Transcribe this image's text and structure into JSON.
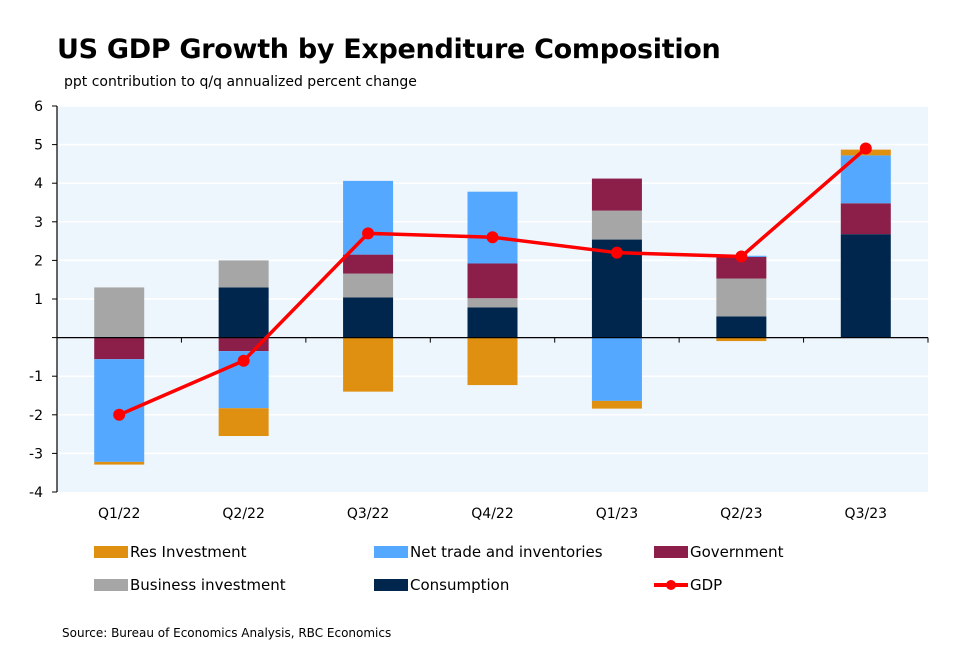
{
  "chart_data": {
    "type": "bar",
    "stacked": true,
    "title": "US GDP Growth by Expenditure Composition",
    "subtitle": "ppt contribution to q/q annualized percent change",
    "xlabel": "",
    "ylabel": "",
    "ylim": [
      -4,
      6
    ],
    "yticks": [
      6,
      5,
      4,
      3,
      2,
      1,
      0,
      -1,
      -2,
      -3,
      -4
    ],
    "ytick_labels": [
      "6",
      "5",
      "4",
      "3",
      "2",
      "1",
      "",
      "-1",
      "-2",
      "-3",
      "-4"
    ],
    "grid": true,
    "legend_position": "bottom",
    "categories": [
      "Q1/22",
      "Q2/22",
      "Q3/22",
      "Q4/22",
      "Q1/23",
      "Q2/23",
      "Q3/23"
    ],
    "series": [
      {
        "name": "Consumption",
        "kind": "bar",
        "color": "#00264D",
        "values": [
          0.02,
          1.3,
          1.04,
          0.78,
          2.54,
          0.55,
          2.68
        ]
      },
      {
        "name": "Business investment",
        "kind": "bar",
        "color": "#A6A6A6",
        "values": [
          1.28,
          0.7,
          0.62,
          0.24,
          0.75,
          0.98,
          0.0
        ]
      },
      {
        "name": "Government",
        "kind": "bar",
        "color": "#8B1F4A",
        "values": [
          -0.56,
          -0.35,
          0.49,
          0.9,
          0.83,
          0.56,
          0.8
        ]
      },
      {
        "name": "Net trade and inventories",
        "kind": "bar",
        "color": "#55A8FF",
        "values": [
          -2.66,
          -1.48,
          1.91,
          1.86,
          -1.64,
          0.03,
          1.24
        ]
      },
      {
        "name": "Res Investment",
        "kind": "bar",
        "color": "#E09010",
        "values": [
          -0.07,
          -0.72,
          -1.4,
          -1.23,
          -0.2,
          -0.09,
          0.15
        ]
      },
      {
        "name": "GDP",
        "kind": "line",
        "color": "#FF0000",
        "values": [
          -2.0,
          -0.6,
          2.7,
          2.6,
          2.2,
          2.1,
          4.9
        ]
      }
    ]
  },
  "legend": {
    "res_investment": "Res Investment",
    "net_trade": "Net trade and inventories",
    "government": "Government",
    "business_investment": "Business investment",
    "consumption": "Consumption",
    "gdp": "GDP"
  },
  "colors": {
    "plot_background": "#EEF6FD",
    "res_investment": "#E09010",
    "net_trade": "#55A8FF",
    "government": "#8B1F4A",
    "business_investment": "#A6A6A6",
    "consumption": "#00264D",
    "gdp": "#FF0000"
  },
  "source": "Source: Bureau of Economics Analysis, RBC Economics"
}
